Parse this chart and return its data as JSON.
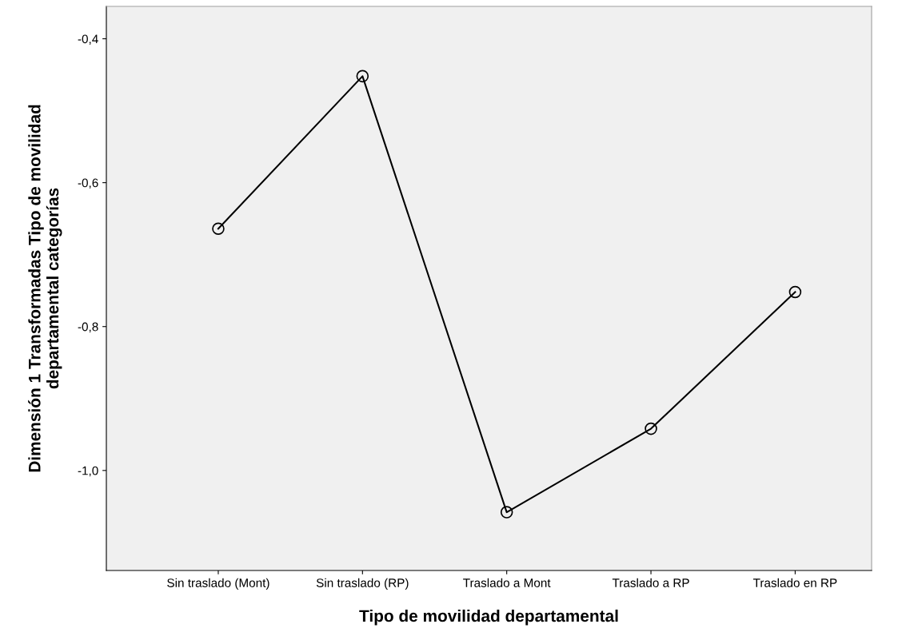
{
  "chart_data": {
    "type": "line",
    "xlabel": "Tipo de movilidad departamental",
    "ylabel": "Dimensión 1 Transformadas Tipo de movilidad\ndepartamental categorías",
    "categories": [
      "Sin traslado (Mont)",
      "Sin traslado (RP)",
      "Traslado a Mont",
      "Traslado a RP",
      "Traslado en RP"
    ],
    "values": [
      -0.664,
      -0.452,
      -1.058,
      -0.942,
      -0.752
    ],
    "color": "#000000",
    "marker": "circle",
    "line_style": "solid",
    "grid": false,
    "legend": false,
    "ylim": [
      -1.139,
      -0.355
    ],
    "yticks": [
      {
        "value": -1.0,
        "label": "-1,0"
      },
      {
        "value": -0.8,
        "label": "-0,8"
      },
      {
        "value": -0.6,
        "label": "-0,6"
      },
      {
        "value": -0.4,
        "label": "-0,4"
      }
    ]
  }
}
